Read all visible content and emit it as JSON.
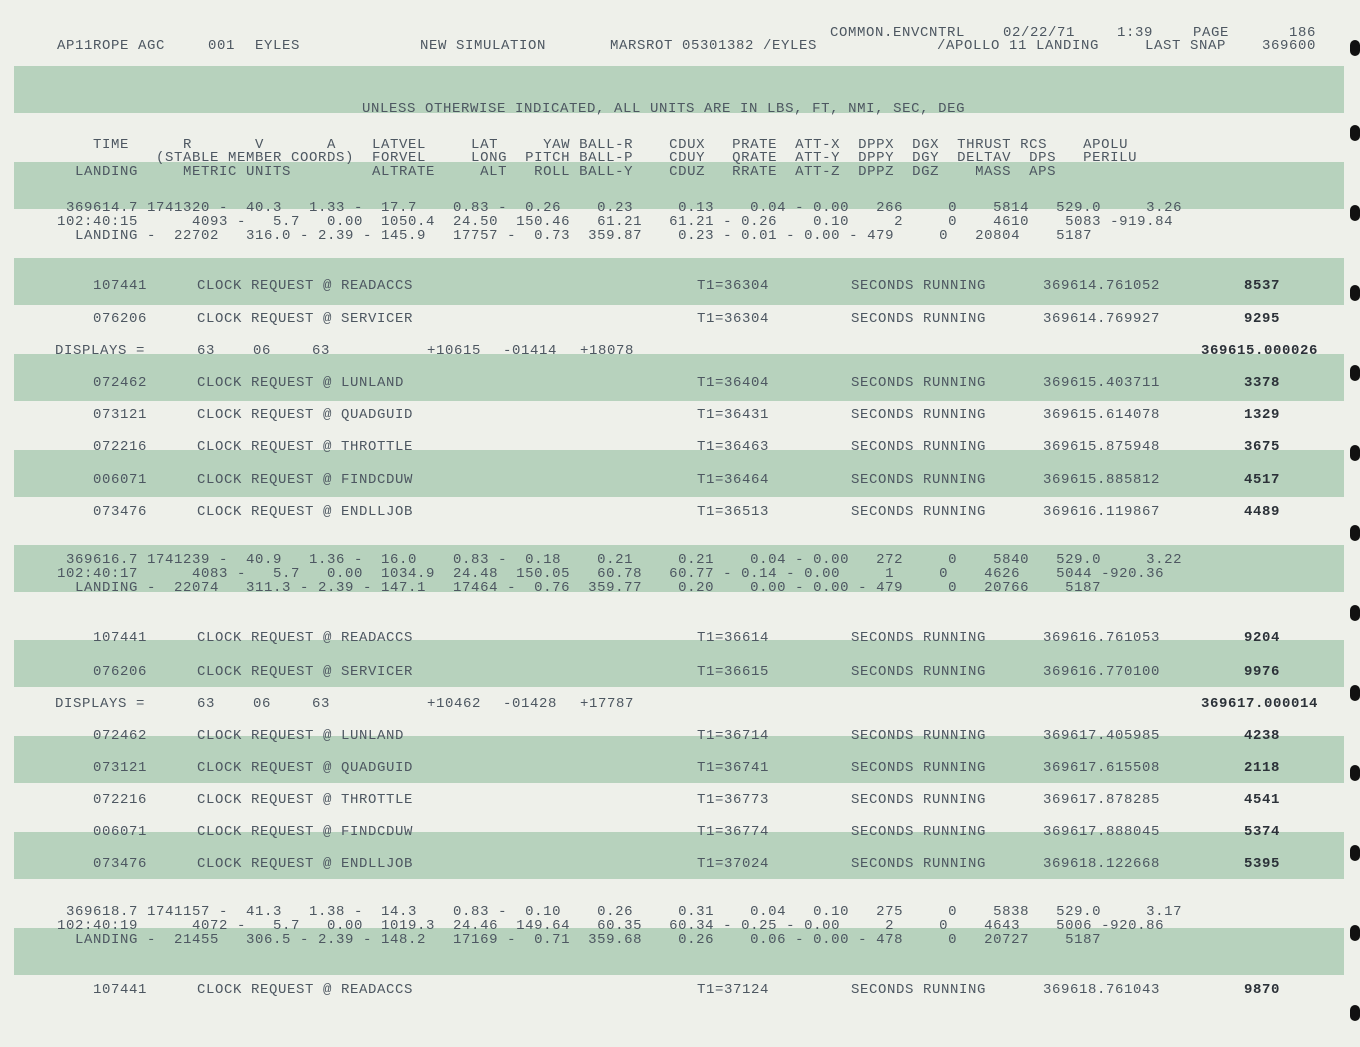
{
  "header": {
    "line1": [
      "COMMON.ENVCNTRL",
      "02/22/71",
      "1:39",
      "PAGE",
      "186"
    ],
    "line2": [
      "AP11ROPE AGC",
      "001",
      "EYLES",
      "NEW SIMULATION",
      "MARSROT 05301382 /EYLES",
      "/APOLLO 11 LANDING",
      "LAST SNAP",
      "369600"
    ]
  },
  "banner": "UNLESS OTHERWISE INDICATED, ALL UNITS ARE IN LBS, FT, NMI, SEC, DEG",
  "column_headers": [
    "    TIME      R       V       A    LATVEL     LAT     YAW BALL-R    CDUX   PRATE  ATT-X  DPPX  DGX  THRUST RCS    APOLU",
    "           (STABLE MEMBER COORDS)  FORVEL     LONG  PITCH BALL-P    CDUY   QRATE  ATT-Y  DPPY  DGY  DELTAV  DPS   PERILU",
    "  LANDING     METRIC UNITS         ALTRATE     ALT   ROLL BALL-Y    CDUZ   RRATE  ATT-Z  DPPZ  DGZ    MASS  APS"
  ],
  "rows": [
    {
      "kind": "state",
      "lines": [
        " 369614.7 1741320 -  40.3   1.33 -  17.7    0.83 -  0.26    0.23     0.13    0.04 - 0.00   266     0    5814   529.0     3.26",
        "102:40:15      4093 -   5.7   0.00  1050.4  24.50  150.46   61.21   61.21 - 0.26    0.10     2     0    4610    5083 -919.84",
        "  LANDING -  22702   316.0 - 2.39 - 145.9   17757 -  0.73  359.87    0.23 - 0.01 - 0.00 - 479     0   20804    5187"
      ]
    },
    {
      "kind": "clock",
      "id": "107441",
      "request": "CLOCK REQUEST @ READACCS",
      "t1": "T1=36304",
      "status": "SECONDS RUNNING",
      "time": "369614.761052",
      "count": "8537"
    },
    {
      "kind": "clock",
      "id": "076206",
      "request": "CLOCK REQUEST @ SERVICER",
      "t1": "T1=36304",
      "status": "SECONDS RUNNING",
      "time": "369614.769927",
      "count": "9295"
    },
    {
      "kind": "displays",
      "label": "DISPLAYS =",
      "values": [
        "63",
        "06",
        "63",
        "+10615",
        "-01414",
        "+18078"
      ],
      "time": "369615.000026"
    },
    {
      "kind": "clock",
      "id": "072462",
      "request": "CLOCK REQUEST @ LUNLAND",
      "t1": "T1=36404",
      "status": "SECONDS RUNNING",
      "time": "369615.403711",
      "count": "3378"
    },
    {
      "kind": "clock",
      "id": "073121",
      "request": "CLOCK REQUEST @ QUADGUID",
      "t1": "T1=36431",
      "status": "SECONDS RUNNING",
      "time": "369615.614078",
      "count": "1329"
    },
    {
      "kind": "clock",
      "id": "072216",
      "request": "CLOCK REQUEST @ THROTTLE",
      "t1": "T1=36463",
      "status": "SECONDS RUNNING",
      "time": "369615.875948",
      "count": "3675"
    },
    {
      "kind": "clock",
      "id": "006071",
      "request": "CLOCK REQUEST @ FINDCDUW",
      "t1": "T1=36464",
      "status": "SECONDS RUNNING",
      "time": "369615.885812",
      "count": "4517"
    },
    {
      "kind": "clock",
      "id": "073476",
      "request": "CLOCK REQUEST @ ENDLLJOB",
      "t1": "T1=36513",
      "status": "SECONDS RUNNING",
      "time": "369616.119867",
      "count": "4489"
    },
    {
      "kind": "state",
      "lines": [
        " 369616.7 1741239 -  40.9   1.36 -  16.0    0.83 -  0.18    0.21     0.21    0.04 - 0.00   272     0    5840   529.0     3.22",
        "102:40:17      4083 -   5.7   0.00  1034.9  24.48  150.05   60.78   60.77 - 0.14 - 0.00     1     0    4626    5044 -920.36",
        "  LANDING -  22074   311.3 - 2.39 - 147.1   17464 -  0.76  359.77    0.20    0.00 - 0.00 - 479     0   20766    5187"
      ]
    },
    {
      "kind": "clock",
      "id": "107441",
      "request": "CLOCK REQUEST @ READACCS",
      "t1": "T1=36614",
      "status": "SECONDS RUNNING",
      "time": "369616.761053",
      "count": "9204"
    },
    {
      "kind": "clock",
      "id": "076206",
      "request": "CLOCK REQUEST @ SERVICER",
      "t1": "T1=36615",
      "status": "SECONDS RUNNING",
      "time": "369616.770100",
      "count": "9976"
    },
    {
      "kind": "displays",
      "label": "DISPLAYS =",
      "values": [
        "63",
        "06",
        "63",
        "+10462",
        "-01428",
        "+17787"
      ],
      "time": "369617.000014"
    },
    {
      "kind": "clock",
      "id": "072462",
      "request": "CLOCK REQUEST @ LUNLAND",
      "t1": "T1=36714",
      "status": "SECONDS RUNNING",
      "time": "369617.405985",
      "count": "4238"
    },
    {
      "kind": "clock",
      "id": "073121",
      "request": "CLOCK REQUEST @ QUADGUID",
      "t1": "T1=36741",
      "status": "SECONDS RUNNING",
      "time": "369617.615508",
      "count": "2118"
    },
    {
      "kind": "clock",
      "id": "072216",
      "request": "CLOCK REQUEST @ THROTTLE",
      "t1": "T1=36773",
      "status": "SECONDS RUNNING",
      "time": "369617.878285",
      "count": "4541"
    },
    {
      "kind": "clock",
      "id": "006071",
      "request": "CLOCK REQUEST @ FINDCDUW",
      "t1": "T1=36774",
      "status": "SECONDS RUNNING",
      "time": "369617.888045",
      "count": "5374"
    },
    {
      "kind": "clock",
      "id": "073476",
      "request": "CLOCK REQUEST @ ENDLLJOB",
      "t1": "T1=37024",
      "status": "SECONDS RUNNING",
      "time": "369618.122668",
      "count": "5395"
    },
    {
      "kind": "state",
      "lines": [
        " 369618.7 1741157 -  41.3   1.38 -  14.3    0.83 -  0.10    0.26     0.31    0.04   0.10   275     0    5838   529.0     3.17",
        "102:40:19      4072 -   5.7   0.00  1019.3  24.46  149.64   60.35   60.34 - 0.25 - 0.00     2     0    4643    5006 -920.86",
        "  LANDING -  21455   306.5 - 2.39 - 148.2   17169 -  0.71  359.68    0.26    0.06 - 0.00 - 478     0   20727    5187"
      ]
    },
    {
      "kind": "clock",
      "id": "107441",
      "request": "CLOCK REQUEST @ READACCS",
      "t1": "T1=37124",
      "status": "SECONDS RUNNING",
      "time": "369618.761043",
      "count": "9870"
    }
  ]
}
